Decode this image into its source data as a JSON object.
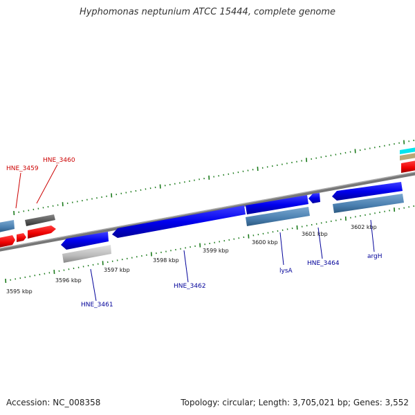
{
  "title": "Hyphomonas neptunium ATCC 15444, complete genome",
  "footer": {
    "accession": "Accession: NC_008358",
    "topology": "Topology: circular; Length: 3,705,021 bp; Genes: 3,552"
  },
  "scale_labels": [
    "3595 kbp",
    "3596 kbp",
    "3597 kbp",
    "3598 kbp",
    "3599 kbp",
    "3600 kbp",
    "3601 kbp",
    "3602 kbp"
  ],
  "genes": [
    {
      "label": "HNE_3459",
      "color": "#cc0000"
    },
    {
      "label": "HNE_3460",
      "color": "#cc0000"
    },
    {
      "label": "HNE_3461",
      "color": "#000099"
    },
    {
      "label": "HNE_3462",
      "color": "#000099"
    },
    {
      "label": "lysA",
      "color": "#000099"
    },
    {
      "label": "HNE_3464",
      "color": "#000099"
    },
    {
      "label": "argH",
      "color": "#000099"
    }
  ],
  "colors": {
    "forward_cds": "#0000ee",
    "forward_gene": "#4a7fb0",
    "reverse_cds": "#ee0000",
    "pseudo": "#bbbbbb",
    "grey_gene": "#555555",
    "backbone": "#888888",
    "ticks": "#1a7a1a",
    "cyan": "#00e5ee",
    "tan": "#b8a878"
  }
}
